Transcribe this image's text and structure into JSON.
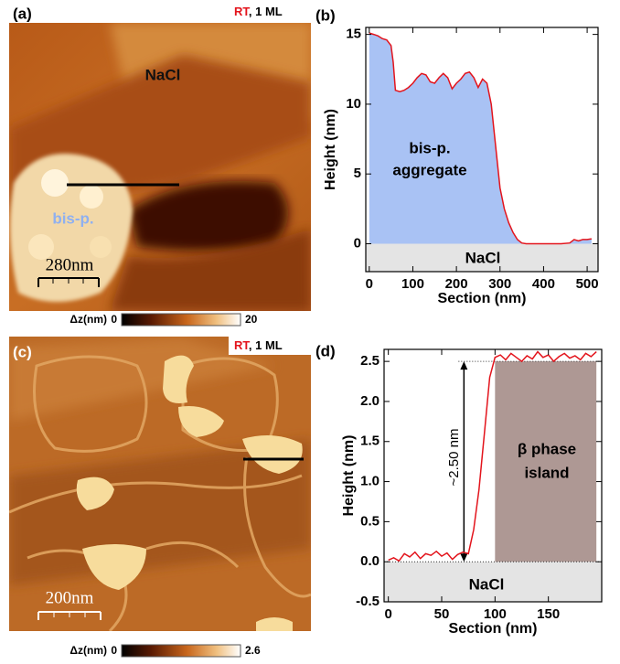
{
  "images": [
    {
      "label": "(a)",
      "tag_rt": "RT",
      "tag_rest": ", 1 ML",
      "labels": [
        "NaCl",
        "bis-p."
      ],
      "scale_bar": "280nm",
      "colorbar": {
        "label": "Δz(nm)",
        "min": 0,
        "max": 20
      }
    },
    {
      "label": "(c)",
      "tag_rt": "RT",
      "tag_rest": ", 1 ML",
      "scale_bar": "200nm",
      "colorbar": {
        "label": "Δz(nm)",
        "min": 0,
        "max": 2.6
      }
    }
  ],
  "chart_data": [
    {
      "type": "line",
      "panel_label": "(b)",
      "x_label": "Section (nm)",
      "y_label": "Height (nm)",
      "color": "#e3141c",
      "fill_color": "#a9c2f4",
      "xlim": [
        -8,
        525
      ],
      "xticks": [
        0,
        100,
        200,
        300,
        400,
        500
      ],
      "ylim": [
        -2,
        15.5
      ],
      "yticks": [
        0,
        5,
        10,
        15
      ],
      "annotations": [
        "bis-p.",
        "aggregate",
        "NaCl"
      ],
      "x": [
        0,
        10,
        20,
        30,
        40,
        50,
        55,
        60,
        70,
        80,
        90,
        100,
        110,
        120,
        130,
        140,
        150,
        160,
        170,
        180,
        190,
        200,
        210,
        220,
        230,
        240,
        250,
        260,
        270,
        280,
        290,
        300,
        310,
        320,
        330,
        340,
        350,
        360,
        380,
        400,
        420,
        440,
        460,
        470,
        480,
        490,
        500,
        510
      ],
      "values": [
        15.1,
        15,
        14.9,
        14.7,
        14.6,
        14.2,
        13,
        11,
        10.9,
        11,
        11.2,
        11.5,
        11.9,
        12.2,
        12.1,
        11.6,
        11.5,
        11.9,
        12.2,
        11.9,
        11.1,
        11.5,
        11.8,
        12.2,
        12.3,
        11.9,
        11.2,
        11.8,
        11.5,
        10,
        7,
        4,
        2.5,
        1.5,
        0.8,
        0.3,
        0.05,
        0,
        0,
        0,
        0,
        0,
        0.05,
        0.3,
        0.2,
        0.3,
        0.3,
        0.35
      ]
    },
    {
      "type": "line",
      "panel_label": "(d)",
      "x_label": "Section (nm)",
      "y_label": "Height (nm)",
      "color": "#e3141c",
      "island_color": "#ae9894",
      "xlim": [
        -4,
        200
      ],
      "xticks": [
        0,
        50,
        100,
        150
      ],
      "ylim": [
        -0.5,
        2.65
      ],
      "yticks": [
        -0.5,
        {
          "value": 0,
          "label": "0.0"
        },
        0.5,
        {
          "value": 1,
          "label": "1.0"
        },
        1.5,
        {
          "value": 2,
          "label": "2.0"
        },
        2.5
      ],
      "annotations": [
        "~2.50 nm",
        "β phase",
        "island",
        "NaCl"
      ],
      "arrow": {
        "from": 0,
        "to": 2.5
      },
      "x": [
        0,
        5,
        10,
        15,
        20,
        25,
        30,
        35,
        40,
        45,
        50,
        55,
        60,
        65,
        70,
        75,
        80,
        85,
        90,
        95,
        100,
        105,
        110,
        115,
        120,
        125,
        130,
        135,
        140,
        145,
        150,
        155,
        160,
        165,
        170,
        175,
        180,
        185,
        190,
        195
      ],
      "values": [
        0.02,
        0.05,
        0.01,
        0.1,
        0.06,
        0.12,
        0.04,
        0.1,
        0.08,
        0.13,
        0.07,
        0.11,
        0.03,
        0.09,
        0.12,
        0.1,
        0.4,
        0.9,
        1.6,
        2.3,
        2.55,
        2.58,
        2.52,
        2.6,
        2.55,
        2.5,
        2.57,
        2.53,
        2.62,
        2.55,
        2.58,
        2.5,
        2.56,
        2.6,
        2.54,
        2.57,
        2.52,
        2.6,
        2.56,
        2.62
      ]
    }
  ]
}
